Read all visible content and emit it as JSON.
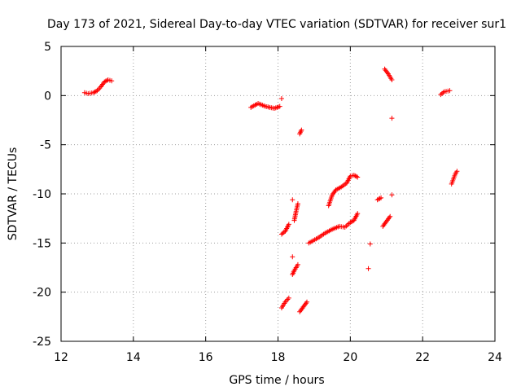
{
  "chart_data": {
    "type": "scatter",
    "title": "Day 173 of 2021, Sidereal Day-to-day VTEC variation (SDTVAR) for receiver sur1",
    "xlabel": "GPS time / hours",
    "ylabel": "SDTVAR / TECUs",
    "xlim": [
      12,
      24
    ],
    "ylim": [
      -25,
      5
    ],
    "xticks": [
      12,
      14,
      16,
      18,
      20,
      22,
      24
    ],
    "yticks": [
      -25,
      -20,
      -15,
      -10,
      -5,
      0,
      5
    ],
    "xtick_labels": [
      "12",
      "14",
      "16",
      "18",
      "20",
      "22",
      "24"
    ],
    "ytick_labels": [
      "-25",
      "-20",
      "-15",
      "-10",
      "-5",
      "0",
      "5"
    ],
    "grid": true,
    "marker": "+",
    "color": "#ff0000",
    "segments": [
      [
        [
          12.65,
          0.3
        ],
        [
          12.75,
          0.2
        ],
        [
          12.9,
          0.3
        ],
        [
          13.0,
          0.5
        ],
        [
          13.1,
          0.9
        ],
        [
          13.2,
          1.4
        ],
        [
          13.3,
          1.6
        ],
        [
          13.4,
          1.5
        ]
      ],
      [
        [
          17.25,
          -1.2
        ],
        [
          17.45,
          -0.8
        ],
        [
          17.65,
          -1.1
        ],
        [
          17.9,
          -1.3
        ],
        [
          18.05,
          -1.1
        ]
      ],
      [
        [
          18.1,
          -0.3
        ]
      ],
      [
        [
          18.6,
          -3.9
        ],
        [
          18.65,
          -3.5
        ]
      ],
      [
        [
          18.4,
          -10.6
        ]
      ],
      [
        [
          18.1,
          -14.1
        ],
        [
          18.2,
          -13.8
        ],
        [
          18.3,
          -13.1
        ]
      ],
      [
        [
          18.45,
          -12.7
        ],
        [
          18.5,
          -11.8
        ],
        [
          18.55,
          -11.0
        ]
      ],
      [
        [
          18.4,
          -16.4
        ]
      ],
      [
        [
          18.4,
          -18.2
        ],
        [
          18.45,
          -17.8
        ],
        [
          18.55,
          -17.2
        ]
      ],
      [
        [
          18.1,
          -21.6
        ],
        [
          18.2,
          -21.0
        ],
        [
          18.3,
          -20.6
        ]
      ],
      [
        [
          18.6,
          -22.0
        ],
        [
          18.7,
          -21.5
        ],
        [
          18.8,
          -21.0
        ]
      ],
      [
        [
          18.85,
          -15.0
        ],
        [
          19.1,
          -14.5
        ],
        [
          19.3,
          -14.0
        ],
        [
          19.5,
          -13.6
        ],
        [
          19.7,
          -13.3
        ],
        [
          19.85,
          -13.4
        ],
        [
          20.0,
          -12.9
        ],
        [
          20.1,
          -12.7
        ],
        [
          20.2,
          -12.0
        ]
      ],
      [
        [
          19.4,
          -11.2
        ],
        [
          19.5,
          -10.1
        ],
        [
          19.6,
          -9.6
        ],
        [
          19.75,
          -9.3
        ],
        [
          19.9,
          -8.9
        ],
        [
          20.0,
          -8.2
        ],
        [
          20.1,
          -8.1
        ],
        [
          20.2,
          -8.3
        ]
      ],
      [
        [
          20.5,
          -17.6
        ]
      ],
      [
        [
          20.55,
          -15.1
        ]
      ],
      [
        [
          20.75,
          -10.6
        ],
        [
          20.85,
          -10.4
        ]
      ],
      [
        [
          20.9,
          -13.3
        ],
        [
          21.0,
          -12.8
        ],
        [
          21.1,
          -12.3
        ]
      ],
      [
        [
          21.15,
          -10.1
        ]
      ],
      [
        [
          20.95,
          2.7
        ],
        [
          21.05,
          2.2
        ],
        [
          21.15,
          1.6
        ]
      ],
      [
        [
          21.15,
          -2.3
        ]
      ],
      [
        [
          22.5,
          0.1
        ],
        [
          22.6,
          0.4
        ],
        [
          22.75,
          0.5
        ]
      ],
      [
        [
          22.8,
          -9.0
        ],
        [
          22.85,
          -8.5
        ],
        [
          22.9,
          -8.0
        ],
        [
          22.95,
          -7.7
        ]
      ]
    ]
  }
}
